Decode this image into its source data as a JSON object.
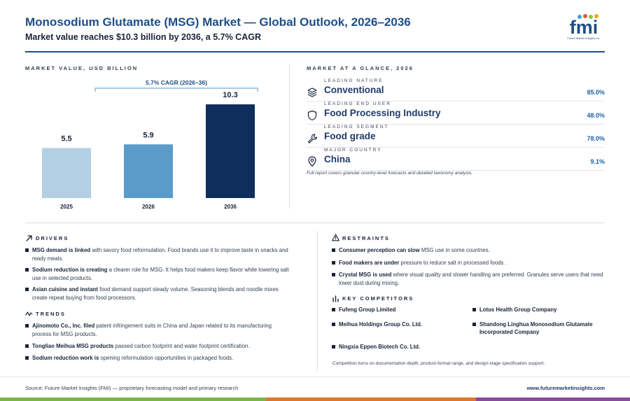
{
  "header": {
    "title": "Monosodium Glutamate (MSG) Market — Global Outlook, 2026–2036",
    "subtitle": "Market value reaches $10.3 billion by 2036, a 5.7% CAGR",
    "logo_text": "fmi",
    "logo_tagline": "Future Market Insights Inc."
  },
  "chart_section_label": "MARKET VALUE, USD BILLION",
  "chart_data": {
    "type": "bar",
    "categories": [
      "2025",
      "2026",
      "2036"
    ],
    "values": [
      5.5,
      5.9,
      10.3
    ],
    "value_labels": [
      "5.5",
      "5.9",
      "10.3"
    ],
    "colors": [
      "#b3cfe3",
      "#5a9bc9",
      "#102e5c"
    ],
    "ylim": [
      0,
      11
    ],
    "annotation": "5.7% CAGR (2026–36)"
  },
  "glance": {
    "label": "MARKET AT A GLANCE, 2026",
    "items": [
      {
        "kicker": "LEADING NATURE",
        "value": "Conventional",
        "pct": "85.0%",
        "icon": "layers-icon"
      },
      {
        "kicker": "LEADING END USER",
        "value": "Food Processing Industry",
        "pct": "48.0%",
        "icon": "shield-icon"
      },
      {
        "kicker": "LEADING SEGMENT",
        "value": "Food grade",
        "pct": "78.0%",
        "icon": "wrench-icon"
      },
      {
        "kicker": "MAJOR COUNTRY",
        "value": "China",
        "pct": "9.1%",
        "icon": "location-pin-icon"
      }
    ],
    "note": "Full report covers granular country-level forecasts and detailed taxonomy analysis."
  },
  "drivers": {
    "label": "DRIVERS",
    "items": [
      {
        "bold": "MSG demand is linked",
        "text": " with savory food reformulation. Food brands use it to improve taste in snacks and ready meals."
      },
      {
        "bold": "Sodium reduction is creating",
        "text": " a clearer role for MSG. It helps food makers keep flavor while lowering salt use in selected products."
      },
      {
        "bold": "Asian cuisine and instant",
        "text": " food demand support steady volume. Seasoning blends and noodle mixes create repeat buying from food processors."
      }
    ]
  },
  "trends": {
    "label": "TRENDS",
    "items": [
      {
        "bold": "Ajinomoto Co., Inc. filed",
        "text": " patent infringement suits in China and Japan related to its manufacturing process for MSG products."
      },
      {
        "bold": "Tongliao Meihua MSG products",
        "text": " passed carbon footprint and water footprint certification."
      },
      {
        "bold": "Sodium reduction work is",
        "text": " opening reformulation opportunities in packaged foods."
      }
    ]
  },
  "restraints": {
    "label": "RESTRAINTS",
    "items": [
      {
        "bold": "Consumer perception can slow",
        "text": " MSG use in some countries."
      },
      {
        "bold": "Food makers are under",
        "text": " pressure to reduce salt in processed foods ."
      },
      {
        "bold": "Crystal MSG is used",
        "text": " where visual quality and slower handling are preferred. Granules serve users that need lower dust during mixing."
      }
    ]
  },
  "competitors": {
    "label": "KEY COMPETITORS",
    "items": [
      "Fufeng Group Limited",
      "Lotus Health Group Company",
      "Meihua Holdings Group Co. Ltd.",
      "Shandong Linghua Monosodium Glutamate Incorporated Company",
      "Ningxia Eppen Biotech Co. Ltd."
    ],
    "note": "Competition turns on documentation depth, product-format range, and design-stage specification support."
  },
  "footer": {
    "source": "Source: Future Market Insights (FMI) — proprietary forecasting model and primary research",
    "url": "www.futuremarketinsights.com"
  }
}
